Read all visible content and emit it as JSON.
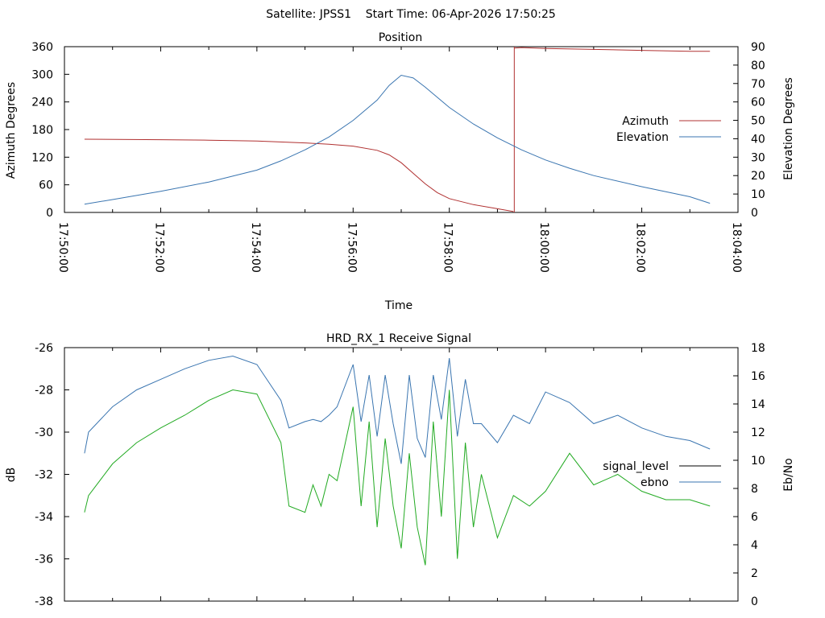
{
  "header": {
    "title": "Satellite: JPSS1    Start Time: 06-Apr-2026 17:50:25"
  },
  "colors": {
    "azimuth": "#b03030",
    "elevation": "#3a75b0",
    "signal_level": "#22aa22",
    "ebno": "#3a75b0",
    "axis": "#000000"
  },
  "chart_data": [
    {
      "type": "line",
      "title": "Position",
      "xlabel": "Time",
      "ylabel": "Azimuth Degrees",
      "y2label": "Elevation Degrees",
      "xlim": [
        "17:50:00",
        "18:04:00"
      ],
      "ylim": [
        0,
        360
      ],
      "y2lim": [
        0,
        90
      ],
      "xticks": [
        "17:50:00",
        "17:52:00",
        "17:54:00",
        "17:56:00",
        "17:58:00",
        "18:00:00",
        "18:02:00",
        "18:04:00"
      ],
      "yticks": [
        "0",
        "60",
        "120",
        "180",
        "240",
        "300",
        "360"
      ],
      "y2ticks": [
        "0",
        "10",
        "20",
        "30",
        "40",
        "50",
        "60",
        "70",
        "80",
        "90"
      ],
      "legend_position": "right",
      "series": [
        {
          "name": "Azimuth",
          "axis": "y",
          "x": [
            "17:50:25",
            "17:52:00",
            "17:53:00",
            "17:54:00",
            "17:55:00",
            "17:55:30",
            "17:56:00",
            "17:56:30",
            "17:56:45",
            "17:57:00",
            "17:57:15",
            "17:57:30",
            "17:57:45",
            "17:58:00",
            "17:58:30",
            "17:59:00",
            "17:59:20",
            "17:59:21",
            "17:59:30",
            "18:00:00",
            "18:01:00",
            "18:02:00",
            "18:03:00",
            "18:03:25"
          ],
          "values": [
            159,
            158,
            157,
            155,
            151,
            148,
            144,
            135,
            125,
            108,
            85,
            62,
            43,
            30,
            17,
            8,
            2,
            357,
            358,
            356,
            354,
            352,
            350,
            350
          ]
        },
        {
          "name": "Elevation",
          "axis": "y2",
          "x": [
            "17:50:25",
            "17:51:00",
            "17:52:00",
            "17:53:00",
            "17:54:00",
            "17:54:30",
            "17:55:00",
            "17:55:30",
            "17:56:00",
            "17:56:30",
            "17:56:45",
            "17:57:00",
            "17:57:15",
            "17:57:30",
            "17:58:00",
            "17:58:30",
            "17:59:00",
            "17:59:30",
            "18:00:00",
            "18:00:30",
            "18:01:00",
            "18:02:00",
            "18:03:00",
            "18:03:25"
          ],
          "values": [
            4.5,
            7,
            11.5,
            16.5,
            23,
            28,
            34,
            41,
            50,
            61,
            69,
            74.5,
            73,
            68,
            57,
            48,
            40.5,
            34,
            28.5,
            24,
            20,
            14,
            8.5,
            5
          ]
        }
      ]
    },
    {
      "type": "line",
      "title": "HRD_RX_1 Receive Signal",
      "xlabel": "",
      "ylabel": "dB",
      "y2label": "Eb/No",
      "xlim": [
        "17:50:00",
        "18:04:00"
      ],
      "ylim": [
        -38,
        -26
      ],
      "y2lim": [
        0,
        18
      ],
      "yticks": [
        "-38",
        "-36",
        "-34",
        "-32",
        "-30",
        "-28",
        "-26"
      ],
      "y2ticks": [
        "0",
        "2",
        "4",
        "6",
        "8",
        "10",
        "12",
        "14",
        "16",
        "18"
      ],
      "legend_position": "right",
      "series": [
        {
          "name": "signal_level",
          "legend_color": "#000000",
          "axis": "y",
          "x": [
            "17:50:25",
            "17:50:30",
            "17:51:00",
            "17:51:30",
            "17:52:00",
            "17:52:30",
            "17:53:00",
            "17:53:30",
            "17:54:00",
            "17:54:30",
            "17:54:40",
            "17:55:00",
            "17:55:10",
            "17:55:20",
            "17:55:30",
            "17:55:40",
            "17:56:00",
            "17:56:10",
            "17:56:20",
            "17:56:30",
            "17:56:40",
            "17:56:50",
            "17:57:00",
            "17:57:10",
            "17:57:20",
            "17:57:30",
            "17:57:40",
            "17:57:50",
            "17:58:00",
            "17:58:10",
            "17:58:20",
            "17:58:30",
            "17:58:40",
            "17:59:00",
            "17:59:20",
            "17:59:40",
            "18:00:00",
            "18:00:30",
            "18:01:00",
            "18:01:30",
            "18:02:00",
            "18:02:30",
            "18:03:00",
            "18:03:25"
          ],
          "values": [
            -33.8,
            -33,
            -31.5,
            -30.5,
            -29.8,
            -29.2,
            -28.5,
            -28,
            -28.2,
            -30.5,
            -33.5,
            -33.8,
            -32.5,
            -33.5,
            -32,
            -32.3,
            -28.8,
            -33.5,
            -29.5,
            -34.5,
            -30.3,
            -33.5,
            -35.5,
            -31,
            -34.5,
            -36.3,
            -29.5,
            -34,
            -28,
            -36,
            -30.5,
            -34.5,
            -32,
            -35,
            -33,
            -33.5,
            -32.8,
            -31,
            -32.5,
            -32,
            -32.8,
            -33.2,
            -33.2,
            -33.5
          ]
        },
        {
          "name": "ebno",
          "axis": "y",
          "x": [
            "17:50:25",
            "17:50:30",
            "17:51:00",
            "17:51:30",
            "17:52:00",
            "17:52:30",
            "17:53:00",
            "17:53:30",
            "17:54:00",
            "17:54:30",
            "17:54:40",
            "17:55:00",
            "17:55:10",
            "17:55:20",
            "17:55:30",
            "17:55:40",
            "17:56:00",
            "17:56:10",
            "17:56:20",
            "17:56:30",
            "17:56:40",
            "17:56:50",
            "17:57:00",
            "17:57:10",
            "17:57:20",
            "17:57:30",
            "17:57:40",
            "17:57:50",
            "17:58:00",
            "17:58:10",
            "17:58:20",
            "17:58:30",
            "17:58:40",
            "17:59:00",
            "17:59:20",
            "17:59:40",
            "18:00:00",
            "18:00:30",
            "18:01:00",
            "18:01:30",
            "18:02:00",
            "18:02:30",
            "18:03:00",
            "18:03:25"
          ],
          "values": [
            -31,
            -30,
            -28.8,
            -28,
            -27.5,
            -27,
            -26.6,
            -26.4,
            -26.8,
            -28.5,
            -29.8,
            -29.5,
            -29.4,
            -29.5,
            -29.2,
            -28.8,
            -26.8,
            -29.5,
            -27.3,
            -30.2,
            -27.3,
            -29.6,
            -31.5,
            -27.3,
            -30.3,
            -31.2,
            -27.3,
            -29.4,
            -26.5,
            -30.2,
            -27.5,
            -29.6,
            -29.6,
            -30.5,
            -29.2,
            -29.6,
            -28.1,
            -28.6,
            -29.6,
            -29.2,
            -29.8,
            -30.2,
            -30.4,
            -30.8
          ]
        }
      ]
    }
  ]
}
